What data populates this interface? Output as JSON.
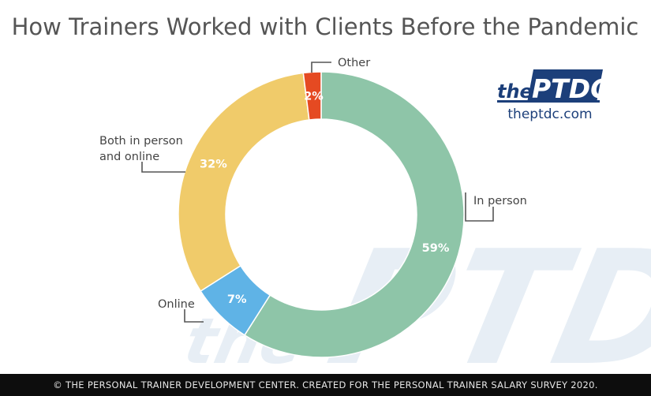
{
  "chart_data": {
    "type": "pie",
    "title": "How Trainers Worked with Clients Before the Pandemic",
    "categories": [
      "In person",
      "Online",
      "Both in person and online",
      "Other"
    ],
    "values": [
      59,
      7,
      32,
      2
    ],
    "value_labels": [
      "59%",
      "7%",
      "32%",
      "2%"
    ],
    "category_label_lines": [
      [
        "In person"
      ],
      [
        "Online"
      ],
      [
        "Both in person",
        "and online"
      ],
      [
        "Other"
      ]
    ],
    "colors": [
      "#8ec5a8",
      "#5fb3e6",
      "#f0cb6a",
      "#e54a22"
    ],
    "style": "donut"
  },
  "logo": {
    "prefix": "the",
    "brand": "PTDC",
    "url": "theptdc.com",
    "color": "#1c3f7a"
  },
  "watermark": {
    "prefix": "the",
    "brand": "PTDC"
  },
  "footer": {
    "text": "© THE PERSONAL TRAINER DEVELOPMENT CENTER. CREATED FOR THE PERSONAL TRAINER SALARY SURVEY 2020."
  }
}
